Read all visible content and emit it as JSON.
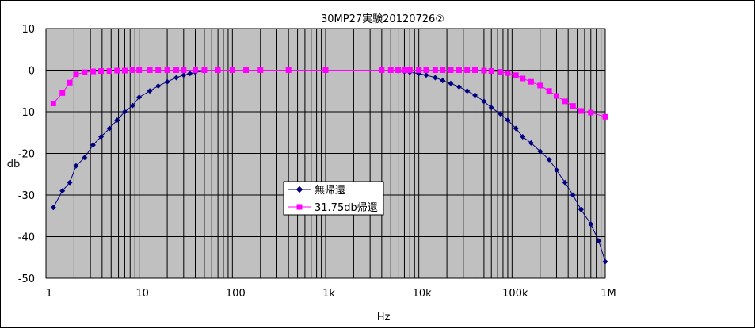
{
  "chart_data": {
    "type": "line",
    "title": "30MP27実験20120726②",
    "xlabel": "Hz",
    "ylabel": "db",
    "x_scale": "log",
    "xlim": [
      1,
      1000000
    ],
    "ylim": [
      -50,
      10
    ],
    "y_ticks": [
      "10",
      "0",
      "-10",
      "-20",
      "-30",
      "-40",
      "-50"
    ],
    "x_ticks": [
      "1",
      "10",
      "100",
      "1k",
      "10k",
      "100k",
      "1M"
    ],
    "grid": true,
    "plot_background": "#c0c0c0",
    "legend_position": "center",
    "series": [
      {
        "name": "無帰還",
        "color": "#000080",
        "marker": "diamond",
        "points": [
          [
            1.2,
            -33
          ],
          [
            1.5,
            -29
          ],
          [
            1.8,
            -27
          ],
          [
            2.1,
            -23
          ],
          [
            2.6,
            -21
          ],
          [
            3.2,
            -18
          ],
          [
            3.9,
            -16
          ],
          [
            4.8,
            -14
          ],
          [
            5.8,
            -12
          ],
          [
            7.0,
            -10
          ],
          [
            8.5,
            -8.5
          ],
          [
            10,
            -6.5
          ],
          [
            13,
            -5
          ],
          [
            16,
            -3.8
          ],
          [
            20,
            -2.8
          ],
          [
            25,
            -1.8
          ],
          [
            30,
            -1.2
          ],
          [
            35,
            -0.8
          ],
          [
            40,
            -0.5
          ],
          [
            50,
            -0.2
          ],
          [
            70,
            0
          ],
          [
            100,
            0
          ],
          [
            140,
            0
          ],
          [
            200,
            0
          ],
          [
            400,
            0
          ],
          [
            1000,
            0
          ],
          [
            4000,
            0
          ],
          [
            5000,
            -0.1
          ],
          [
            6000,
            -0.2
          ],
          [
            7000,
            -0.3
          ],
          [
            8000,
            -0.5
          ],
          [
            10000,
            -0.8
          ],
          [
            12000,
            -1.2
          ],
          [
            15000,
            -1.8
          ],
          [
            18000,
            -2.5
          ],
          [
            22000,
            -3.2
          ],
          [
            27000,
            -4
          ],
          [
            33000,
            -5
          ],
          [
            40000,
            -6
          ],
          [
            50000,
            -7.5
          ],
          [
            60000,
            -9
          ],
          [
            75000,
            -10.5
          ],
          [
            90000,
            -12
          ],
          [
            110000,
            -14
          ],
          [
            130000,
            -16
          ],
          [
            160000,
            -17.5
          ],
          [
            200000,
            -19.5
          ],
          [
            250000,
            -21.5
          ],
          [
            300000,
            -24
          ],
          [
            370000,
            -27
          ],
          [
            450000,
            -30
          ],
          [
            550000,
            -33.5
          ],
          [
            700000,
            -37
          ],
          [
            850000,
            -41
          ],
          [
            1000000,
            -46
          ]
        ]
      },
      {
        "name": "31.75db帰還",
        "color": "#ff00ff",
        "marker": "square",
        "points": [
          [
            1.2,
            -8
          ],
          [
            1.5,
            -5.5
          ],
          [
            1.8,
            -3
          ],
          [
            2.1,
            -1
          ],
          [
            2.6,
            -0.5
          ],
          [
            3.2,
            -0.3
          ],
          [
            3.9,
            -0.2
          ],
          [
            4.8,
            -0.2
          ],
          [
            5.8,
            -0.1
          ],
          [
            7.0,
            -0.1
          ],
          [
            8.5,
            0
          ],
          [
            10,
            0
          ],
          [
            13,
            0
          ],
          [
            16,
            0
          ],
          [
            20,
            0
          ],
          [
            25,
            0
          ],
          [
            30,
            0
          ],
          [
            40,
            0
          ],
          [
            50,
            0
          ],
          [
            70,
            0
          ],
          [
            100,
            0
          ],
          [
            140,
            0
          ],
          [
            200,
            0
          ],
          [
            400,
            0
          ],
          [
            1000,
            0
          ],
          [
            4000,
            0
          ],
          [
            5000,
            0
          ],
          [
            6000,
            0
          ],
          [
            7000,
            0
          ],
          [
            8000,
            0
          ],
          [
            10000,
            0
          ],
          [
            12000,
            0
          ],
          [
            15000,
            0
          ],
          [
            18000,
            0
          ],
          [
            22000,
            0
          ],
          [
            27000,
            0
          ],
          [
            33000,
            0
          ],
          [
            40000,
            0
          ],
          [
            50000,
            -0.1
          ],
          [
            60000,
            -0.2
          ],
          [
            75000,
            -0.4
          ],
          [
            90000,
            -0.7
          ],
          [
            110000,
            -1.2
          ],
          [
            130000,
            -2
          ],
          [
            160000,
            -2.8
          ],
          [
            200000,
            -3.7
          ],
          [
            250000,
            -5
          ],
          [
            300000,
            -6.2
          ],
          [
            370000,
            -7.5
          ],
          [
            450000,
            -8.6
          ],
          [
            550000,
            -9.8
          ],
          [
            700000,
            -10.2
          ],
          [
            1000000,
            -11.2
          ]
        ]
      }
    ]
  }
}
